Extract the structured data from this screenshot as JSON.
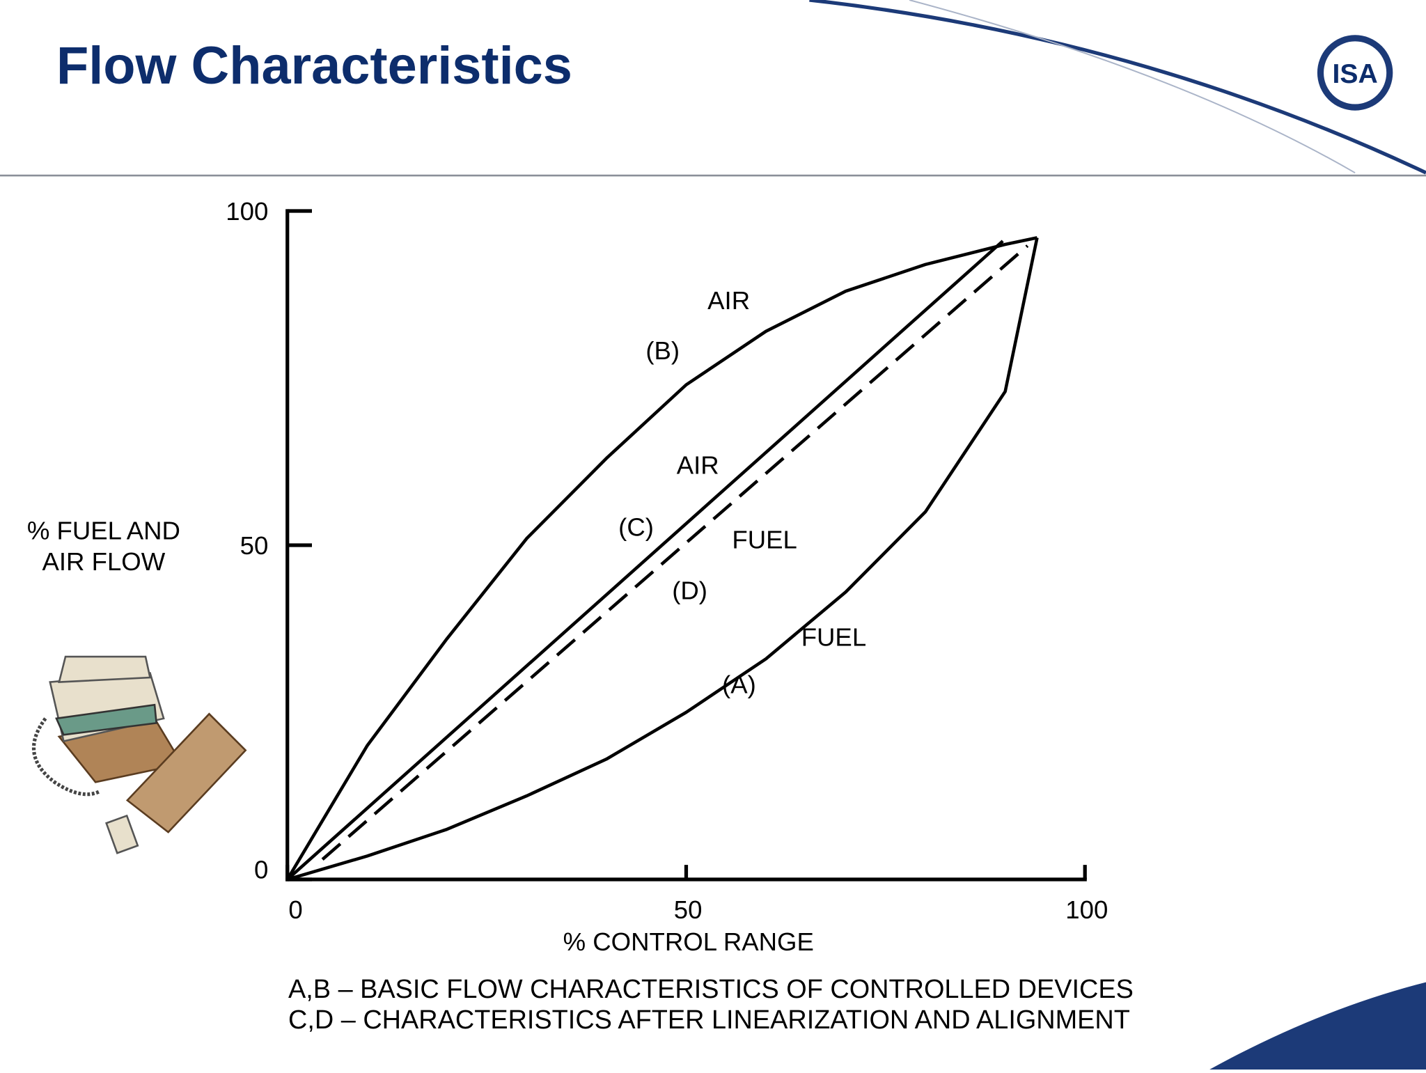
{
  "header": {
    "title": "Flow Characteristics",
    "logo": "ISA"
  },
  "chart_data": {
    "type": "line",
    "xlabel": "% CONTROL RANGE",
    "ylabel": [
      "% FUEL AND",
      "AIR FLOW"
    ],
    "xlim": [
      0,
      100
    ],
    "ylim": [
      0,
      100
    ],
    "xticks": [
      0,
      50,
      100
    ],
    "yticks": [
      0,
      50,
      100
    ],
    "series": [
      {
        "name": "(A)",
        "color": "#000000",
        "dashed": false,
        "x": [
          0,
          10,
          20,
          30,
          40,
          50,
          60,
          70,
          80,
          90,
          94
        ],
        "values": [
          0,
          3.5,
          7.5,
          12.5,
          18,
          25,
          33,
          43,
          55,
          73,
          96
        ]
      },
      {
        "name": "(B)",
        "color": "#000000",
        "dashed": false,
        "x": [
          0,
          10,
          20,
          30,
          40,
          50,
          60,
          70,
          80,
          90,
          94
        ],
        "values": [
          0,
          20,
          36,
          51,
          63,
          74,
          82,
          88,
          92,
          95,
          96
        ]
      },
      {
        "name": "(C)",
        "color": "#000000",
        "dashed": false,
        "x": [
          0,
          89.7
        ],
        "values": [
          0,
          95.5
        ]
      },
      {
        "name": "(D)",
        "color": "#000000",
        "dashed": true,
        "x": [
          4.4,
          92.8
        ],
        "values": [
          3,
          94.8
        ]
      }
    ],
    "annotations": [
      "AIR",
      "AIR",
      "FUEL",
      "FUEL"
    ],
    "notes": [
      "A,B – BASIC FLOW CHARACTERISTICS OF CONTROLLED DEVICES",
      "C,D – CHARACTERISTICS AFTER LINEARIZATION AND ALIGNMENT"
    ]
  }
}
